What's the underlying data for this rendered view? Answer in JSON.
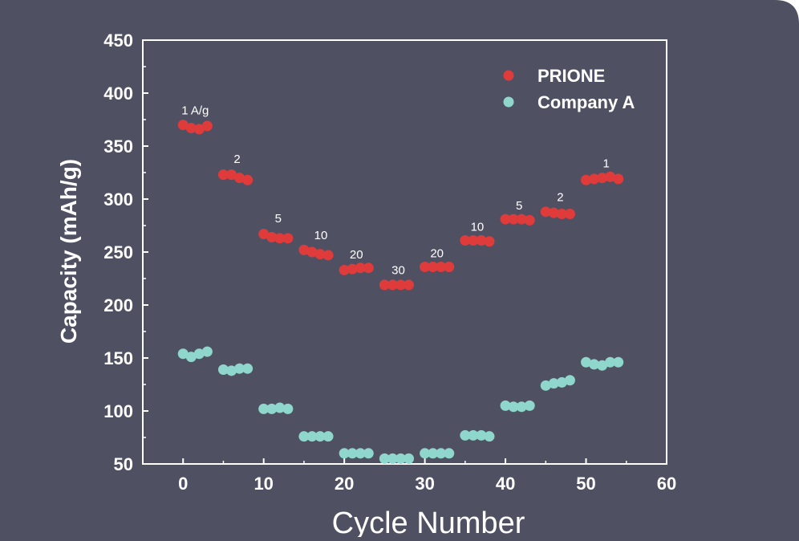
{
  "chart_data": {
    "type": "scatter",
    "xlabel": "Cycle Number",
    "ylabel": "Capacity (mAh/g)",
    "xlim": [
      -5,
      60
    ],
    "ylim": [
      50,
      450
    ],
    "xticks": [
      0,
      10,
      20,
      30,
      40,
      50,
      60
    ],
    "yticks": [
      50,
      100,
      150,
      200,
      250,
      300,
      350,
      400,
      450
    ],
    "grid": false,
    "legend_position": "top-right",
    "series": [
      {
        "name": "PRIONE",
        "color": "#e03b3b",
        "points": [
          [
            0,
            370
          ],
          [
            1,
            367
          ],
          [
            2,
            366
          ],
          [
            3,
            369
          ],
          [
            5,
            323
          ],
          [
            6,
            323
          ],
          [
            7,
            320
          ],
          [
            8,
            318
          ],
          [
            10,
            267
          ],
          [
            11,
            264
          ],
          [
            12,
            263
          ],
          [
            13,
            263
          ],
          [
            15,
            252
          ],
          [
            16,
            250
          ],
          [
            17,
            248
          ],
          [
            18,
            247
          ],
          [
            20,
            233
          ],
          [
            21,
            234
          ],
          [
            22,
            235
          ],
          [
            23,
            235
          ],
          [
            25,
            219
          ],
          [
            26,
            219
          ],
          [
            27,
            219
          ],
          [
            28,
            219
          ],
          [
            30,
            236
          ],
          [
            31,
            236
          ],
          [
            32,
            236
          ],
          [
            33,
            236
          ],
          [
            35,
            261
          ],
          [
            36,
            261
          ],
          [
            37,
            261
          ],
          [
            38,
            260
          ],
          [
            40,
            281
          ],
          [
            41,
            281
          ],
          [
            42,
            281
          ],
          [
            43,
            280
          ],
          [
            45,
            288
          ],
          [
            46,
            287
          ],
          [
            47,
            286
          ],
          [
            48,
            286
          ],
          [
            50,
            318
          ],
          [
            51,
            319
          ],
          [
            52,
            320
          ],
          [
            53,
            321
          ],
          [
            54,
            319
          ]
        ]
      },
      {
        "name": "Company A",
        "color": "#8fd6cc",
        "points": [
          [
            0,
            154
          ],
          [
            1,
            151
          ],
          [
            2,
            154
          ],
          [
            3,
            156
          ],
          [
            5,
            139
          ],
          [
            6,
            138
          ],
          [
            7,
            140
          ],
          [
            8,
            140
          ],
          [
            10,
            102
          ],
          [
            11,
            102
          ],
          [
            12,
            103
          ],
          [
            13,
            102
          ],
          [
            15,
            76
          ],
          [
            16,
            76
          ],
          [
            17,
            76
          ],
          [
            18,
            76
          ],
          [
            20,
            60
          ],
          [
            21,
            60
          ],
          [
            22,
            60
          ],
          [
            23,
            60
          ],
          [
            25,
            55
          ],
          [
            26,
            55
          ],
          [
            27,
            55
          ],
          [
            28,
            55
          ],
          [
            30,
            60
          ],
          [
            31,
            60
          ],
          [
            32,
            60
          ],
          [
            33,
            60
          ],
          [
            35,
            77
          ],
          [
            36,
            77
          ],
          [
            37,
            77
          ],
          [
            38,
            76
          ],
          [
            40,
            105
          ],
          [
            41,
            104
          ],
          [
            42,
            104
          ],
          [
            43,
            105
          ],
          [
            45,
            124
          ],
          [
            46,
            126
          ],
          [
            47,
            127
          ],
          [
            48,
            129
          ],
          [
            50,
            146
          ],
          [
            51,
            144
          ],
          [
            52,
            143
          ],
          [
            53,
            146
          ],
          [
            54,
            146
          ]
        ]
      }
    ],
    "annotations": [
      {
        "text": "1 A/g",
        "x": 1.5,
        "y": 380
      },
      {
        "text": "2",
        "x": 6.7,
        "y": 334
      },
      {
        "text": "5",
        "x": 11.8,
        "y": 278
      },
      {
        "text": "10",
        "x": 17.1,
        "y": 262
      },
      {
        "text": "20",
        "x": 21.5,
        "y": 244
      },
      {
        "text": "30",
        "x": 26.7,
        "y": 229
      },
      {
        "text": "20",
        "x": 31.5,
        "y": 245
      },
      {
        "text": "10",
        "x": 36.5,
        "y": 270
      },
      {
        "text": "5",
        "x": 41.7,
        "y": 290
      },
      {
        "text": "2",
        "x": 46.8,
        "y": 298
      },
      {
        "text": "1",
        "x": 52.5,
        "y": 330
      }
    ]
  }
}
